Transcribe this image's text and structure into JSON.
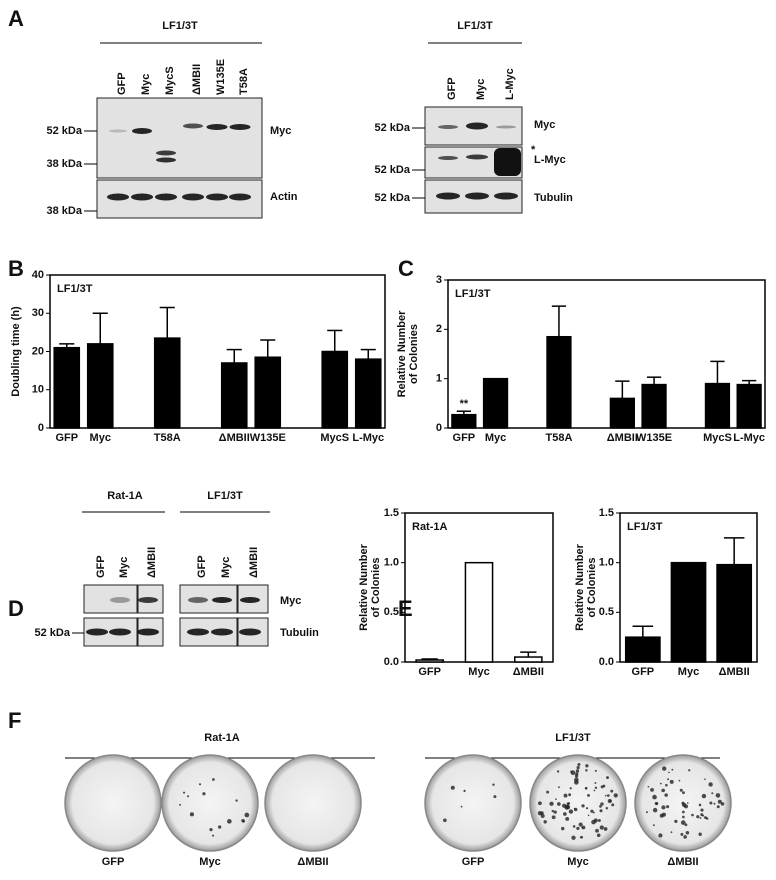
{
  "panel_labels": [
    "A",
    "B",
    "C",
    "D",
    "E",
    "F"
  ],
  "panel_a": {
    "left": {
      "header": "LF1/3T",
      "lanes": [
        "GFP",
        "Myc",
        "MycS",
        "ΔMBII",
        "W135E",
        "T58A"
      ],
      "markers": [
        "52 kDa",
        "38 kDa",
        "38 kDa"
      ],
      "blots": [
        "Myc",
        "Actin"
      ]
    },
    "right": {
      "header": "LF1/3T",
      "lanes": [
        "GFP",
        "Myc",
        "L-Myc"
      ],
      "markers": [
        "52 kDa",
        "52 kDa",
        "52 kDa"
      ],
      "blots": [
        "Myc",
        "L-Myc",
        "Tubulin"
      ],
      "asterisk": "*"
    }
  },
  "panel_d": {
    "groups": [
      {
        "header": "Rat-1A",
        "lanes": [
          "GFP",
          "Myc",
          "ΔMBII"
        ]
      },
      {
        "header": "LF1/3T",
        "lanes": [
          "GFP",
          "Myc",
          "ΔMBII"
        ]
      }
    ],
    "marker": "52 kDa",
    "blots": [
      "Myc",
      "Tubulin"
    ]
  },
  "chart_data": [
    {
      "type": "bar",
      "annotation": "LF1/3T",
      "ylabel": "Doubling time (h)",
      "color": "#000000",
      "categories": [
        "GFP",
        "Myc",
        null,
        "T58A",
        null,
        "ΔMBII",
        "W135E",
        null,
        "MycS",
        "L-Myc"
      ],
      "values": [
        21,
        22,
        null,
        23.5,
        null,
        17,
        18.5,
        null,
        20,
        18
      ],
      "errors": [
        1,
        8,
        null,
        8,
        null,
        3.5,
        4.5,
        null,
        5.5,
        2.5
      ],
      "ylim": [
        0,
        40
      ],
      "yticks": [
        0,
        10,
        20,
        30,
        40
      ]
    },
    {
      "type": "bar",
      "annotation": "LF1/3T",
      "ylabel_lines": [
        "Relative Number",
        "of Colonies"
      ],
      "color": "#000000",
      "categories": [
        "GFP",
        "Myc",
        null,
        "T58A",
        null,
        "ΔMBII",
        "W135E",
        null,
        "MycS",
        "L-Myc"
      ],
      "values": [
        0.27,
        1,
        null,
        1.85,
        null,
        0.6,
        0.88,
        null,
        0.9,
        0.88
      ],
      "errors": [
        0.07,
        null,
        null,
        0.62,
        null,
        0.35,
        0.15,
        null,
        0.45,
        0.08
      ],
      "bar_labels": [
        "**",
        null,
        null,
        null,
        null,
        null,
        null,
        null,
        null,
        null
      ],
      "ylim": [
        0,
        3
      ],
      "yticks": [
        0,
        1,
        2,
        3
      ]
    },
    {
      "type": "bar",
      "annotation": "Rat-1A",
      "ylabel_lines": [
        "Relative Number",
        "of Colonies"
      ],
      "color": "#ffffff",
      "categories": [
        "GFP",
        "Myc",
        "ΔMBII"
      ],
      "values": [
        0.02,
        1,
        0.05
      ],
      "errors": [
        0.01,
        null,
        0.05
      ],
      "ylim": [
        0,
        1.5
      ],
      "yticks": [
        {
          "value": 0,
          "label": "0.0"
        },
        {
          "value": 0.5,
          "label": "0.5"
        },
        {
          "value": 1,
          "label": "1.0"
        },
        {
          "value": 1.5,
          "label": "1.5"
        }
      ]
    },
    {
      "type": "bar",
      "annotation": "LF1/3T",
      "ylabel_lines": [
        "Relative Number",
        "of Colonies"
      ],
      "color": "#000000",
      "categories": [
        "GFP",
        "Myc",
        "ΔMBII"
      ],
      "values": [
        0.25,
        1,
        0.98
      ],
      "errors": [
        0.11,
        null,
        0.27
      ],
      "ylim": [
        0,
        1.5
      ],
      "yticks": [
        {
          "value": 0,
          "label": "0.0"
        },
        {
          "value": 0.5,
          "label": "0.5"
        },
        {
          "value": 1,
          "label": "1.0"
        },
        {
          "value": 1.5,
          "label": "1.5"
        }
      ]
    }
  ],
  "panel_f": {
    "groups": [
      {
        "header": "Rat-1A",
        "labels": [
          "GFP",
          "Myc",
          "ΔMBII"
        ]
      },
      {
        "header": "LF1/3T",
        "labels": [
          "GFP",
          "Myc",
          "ΔMBII"
        ]
      }
    ]
  }
}
